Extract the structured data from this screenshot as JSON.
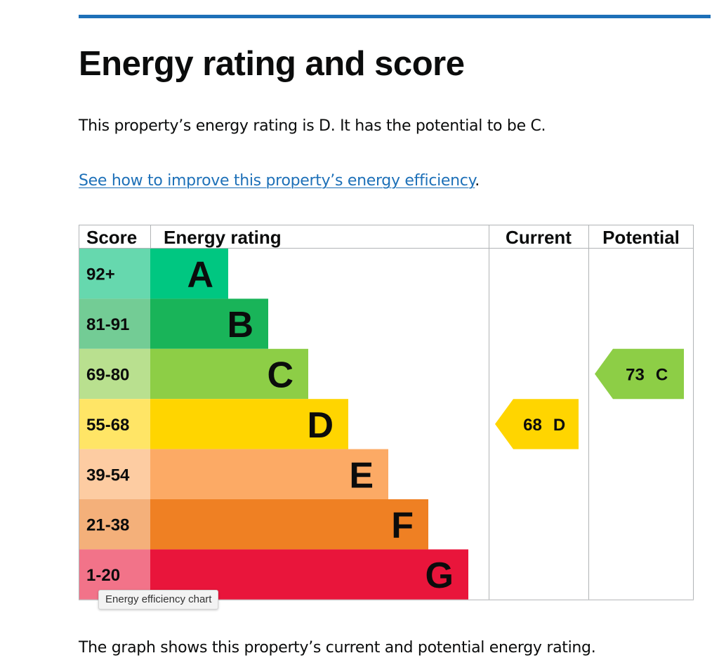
{
  "heading": {
    "title": "Energy rating and score"
  },
  "summary": {
    "text": "This property’s energy rating is D. It has the potential to be C."
  },
  "improve": {
    "link_text": "See how to improve this property’s energy efficiency",
    "trailing": "."
  },
  "tooltip": {
    "text": "Energy efficiency chart"
  },
  "footer": {
    "text": "The graph shows this property’s current and potential energy rating."
  },
  "chart_data": {
    "type": "table",
    "columns": [
      "Score",
      "Energy rating",
      "Current",
      "Potential"
    ],
    "bands": [
      {
        "letter": "A",
        "score_range": "92+",
        "color": "#00c781",
        "score_bg": "#66d8ae"
      },
      {
        "letter": "B",
        "score_range": "81-91",
        "color": "#19b459",
        "score_bg": "#73cc95"
      },
      {
        "letter": "C",
        "score_range": "69-80",
        "color": "#8dce46",
        "score_bg": "#b9e08f"
      },
      {
        "letter": "D",
        "score_range": "55-68",
        "color": "#ffd500",
        "score_bg": "#ffe566"
      },
      {
        "letter": "E",
        "score_range": "39-54",
        "color": "#fcaa65",
        "score_bg": "#fdcca2"
      },
      {
        "letter": "F",
        "score_range": "21-38",
        "color": "#ef8023",
        "score_bg": "#f4b07a"
      },
      {
        "letter": "G",
        "score_range": "1-20",
        "color": "#e9153b",
        "score_bg": "#f27389"
      }
    ],
    "current": {
      "score": 68,
      "rating": "D"
    },
    "potential": {
      "score": 73,
      "rating": "C"
    }
  }
}
